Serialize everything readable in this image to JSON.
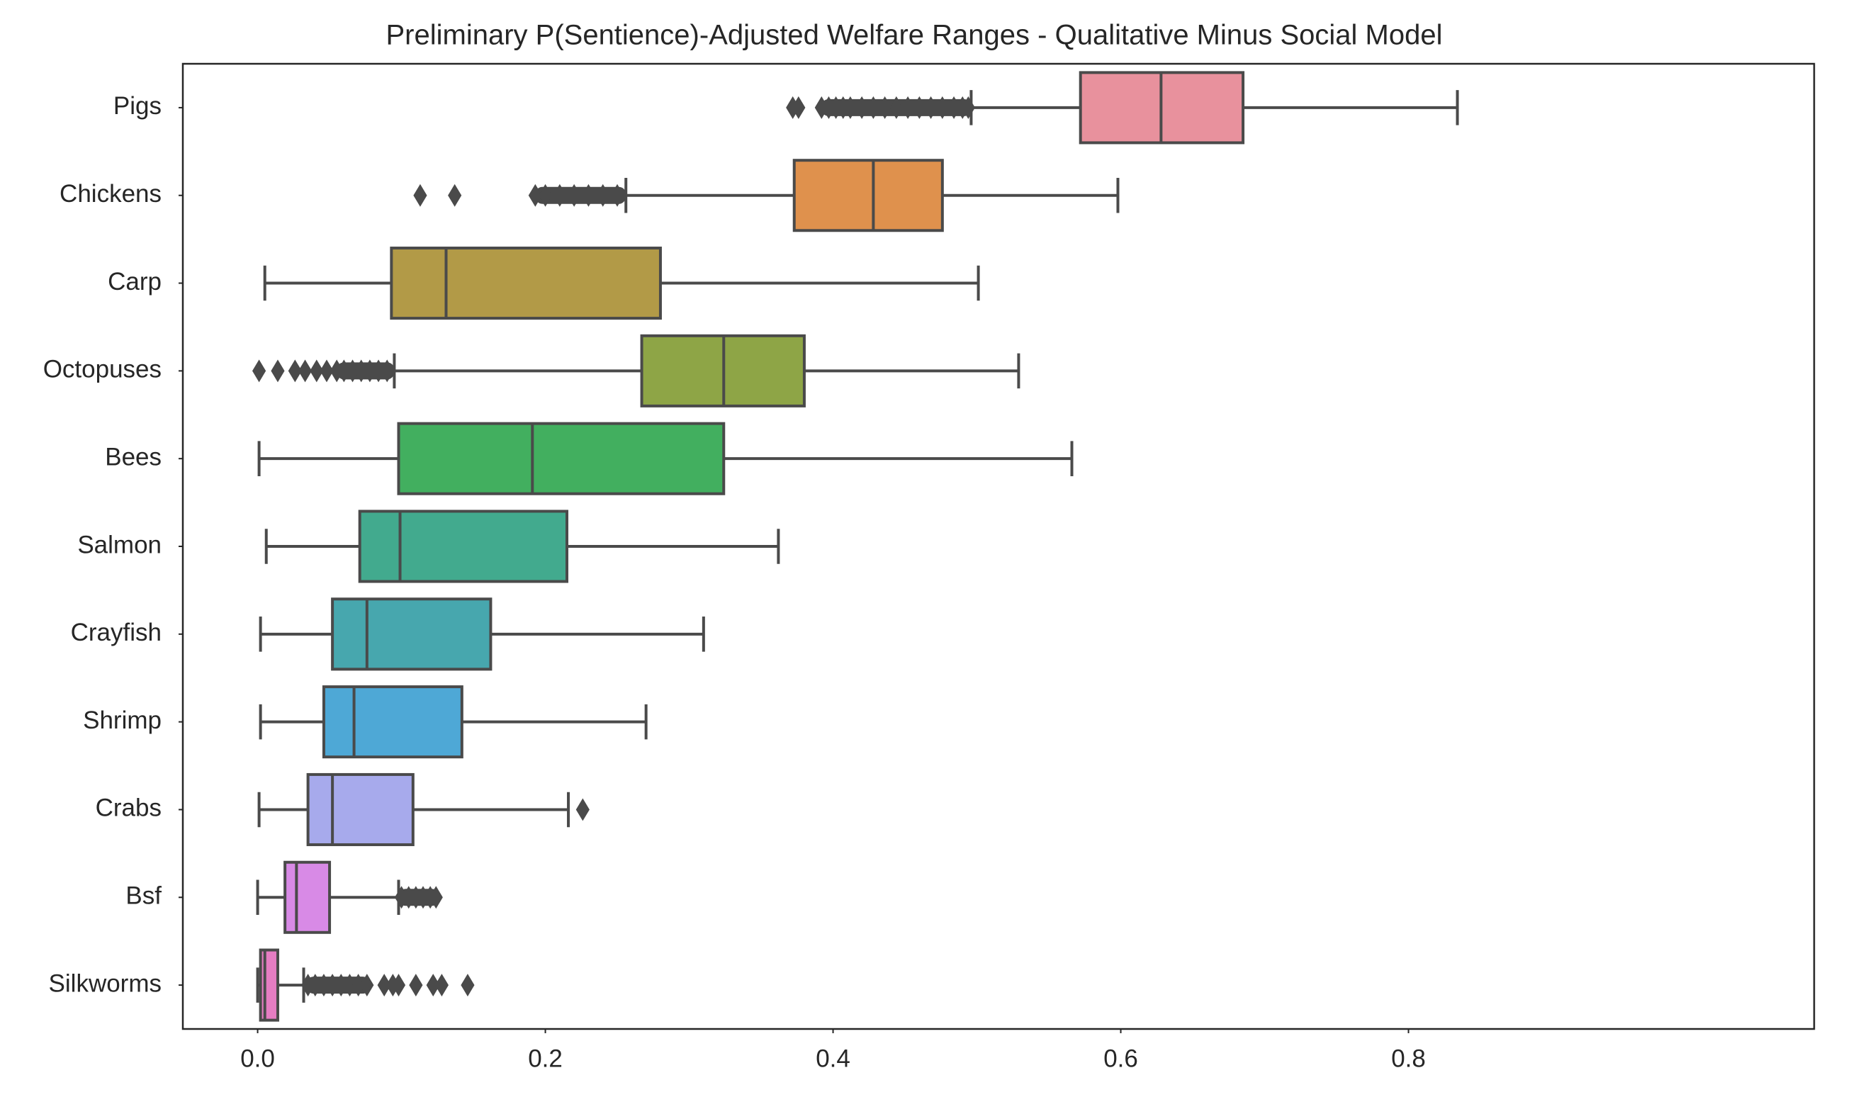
{
  "chart_data": {
    "type": "boxplot",
    "orientation": "horizontal",
    "title": "Preliminary P(Sentience)-Adjusted Welfare Ranges - Qualitative Minus Social Model",
    "xlabel": "",
    "ylabel": "",
    "xlim": [
      -0.052,
      1.082
    ],
    "xticks": [
      0.0,
      0.2,
      0.4,
      0.6,
      0.8
    ],
    "xtick_labels": [
      "0.0",
      "0.2",
      "0.4",
      "0.6",
      "0.8"
    ],
    "grid": false,
    "legend": "none",
    "edge_color": "#4a4a4a",
    "categories": [
      "Pigs",
      "Chickens",
      "Carp",
      "Octopuses",
      "Bees",
      "Salmon",
      "Crayfish",
      "Shrimp",
      "Crabs",
      "Bsf",
      "Silkworms"
    ],
    "series": [
      {
        "category": "Pigs",
        "color": "#e8919d",
        "whislo": 0.496,
        "q1": 0.572,
        "med": 0.628,
        "q3": 0.685,
        "whishi": 0.834,
        "outliers_dense": [
          0.392,
          0.496
        ],
        "outliers": [
          0.372,
          0.376,
          0.392,
          0.397,
          0.402,
          0.407,
          0.412,
          0.42,
          0.428,
          0.436,
          0.444,
          0.452,
          0.46,
          0.468,
          0.476,
          0.484,
          0.49,
          0.494
        ]
      },
      {
        "category": "Chickens",
        "color": "#df914d",
        "whislo": 0.256,
        "q1": 0.373,
        "med": 0.428,
        "q3": 0.476,
        "whishi": 0.598,
        "outliers_dense": [
          0.193,
          0.256
        ],
        "outliers": [
          0.113,
          0.137,
          0.193,
          0.2,
          0.21,
          0.22,
          0.23,
          0.24,
          0.25
        ]
      },
      {
        "category": "Carp",
        "color": "#b29a47",
        "whislo": 0.005,
        "q1": 0.093,
        "med": 0.131,
        "q3": 0.28,
        "whishi": 0.501,
        "outliers": []
      },
      {
        "category": "Octopuses",
        "color": "#8ea546",
        "whislo": 0.095,
        "q1": 0.267,
        "med": 0.324,
        "q3": 0.38,
        "whishi": 0.529,
        "outliers_dense": [
          0.055,
          0.095
        ],
        "outliers": [
          0.001,
          0.014,
          0.026,
          0.033,
          0.041,
          0.048,
          0.055,
          0.06,
          0.066,
          0.072,
          0.078,
          0.084,
          0.09
        ]
      },
      {
        "category": "Bees",
        "color": "#42af5f",
        "whislo": 0.001,
        "q1": 0.098,
        "med": 0.191,
        "q3": 0.324,
        "whishi": 0.566,
        "outliers": []
      },
      {
        "category": "Salmon",
        "color": "#42aa8e",
        "whislo": 0.006,
        "q1": 0.071,
        "med": 0.099,
        "q3": 0.215,
        "whishi": 0.362,
        "outliers": []
      },
      {
        "category": "Crayfish",
        "color": "#47a7ae",
        "whislo": 0.002,
        "q1": 0.052,
        "med": 0.076,
        "q3": 0.162,
        "whishi": 0.31,
        "outliers": []
      },
      {
        "category": "Shrimp",
        "color": "#4ea8d6",
        "whislo": 0.002,
        "q1": 0.046,
        "med": 0.067,
        "q3": 0.142,
        "whishi": 0.27,
        "outliers": []
      },
      {
        "category": "Crabs",
        "color": "#a7aaec",
        "whislo": 0.001,
        "q1": 0.035,
        "med": 0.052,
        "q3": 0.108,
        "whishi": 0.216,
        "outliers": [
          0.226
        ]
      },
      {
        "category": "Bsf",
        "color": "#d88ae6",
        "whislo": 0.0,
        "q1": 0.019,
        "med": 0.027,
        "q3": 0.05,
        "whishi": 0.098,
        "outliers_dense": [
          0.098,
          0.126
        ],
        "outliers": [
          0.1,
          0.105,
          0.11,
          0.115,
          0.12,
          0.124
        ]
      },
      {
        "category": "Silkworms",
        "color": "#e57dc2",
        "whislo": 0.0,
        "q1": 0.002,
        "med": 0.005,
        "q3": 0.014,
        "whishi": 0.032,
        "outliers_dense": [
          0.034,
          0.078
        ],
        "outliers": [
          0.035,
          0.04,
          0.046,
          0.052,
          0.058,
          0.064,
          0.07,
          0.076,
          0.088,
          0.094,
          0.098,
          0.11,
          0.122,
          0.128,
          0.146
        ]
      }
    ]
  }
}
